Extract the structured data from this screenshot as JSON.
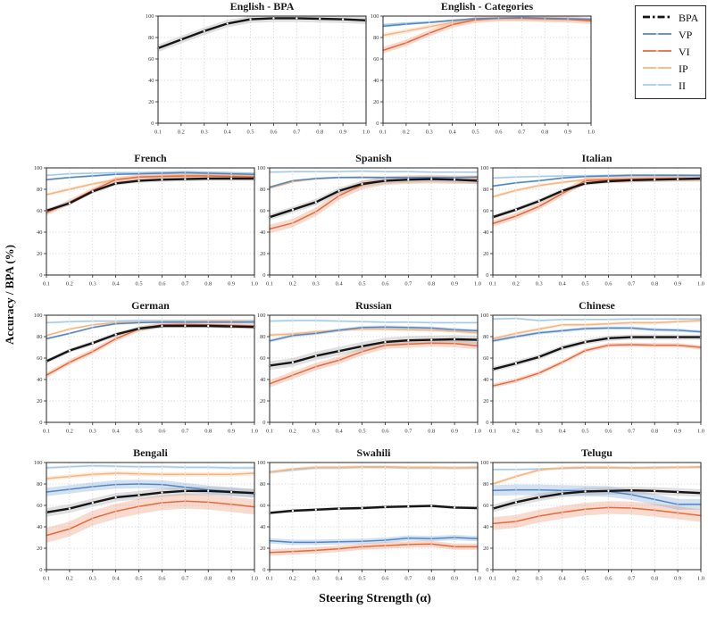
{
  "axes": {
    "xlabel": "Steering Strength (α)",
    "ylabel": "Accuracy / BPA (%)"
  },
  "legend": {
    "entries": [
      {
        "label": "BPA",
        "series": "BPA",
        "style": "dashdot"
      },
      {
        "label": "VP",
        "series": "VP",
        "style": "line"
      },
      {
        "label": "VI",
        "series": "VI",
        "style": "line"
      },
      {
        "label": "IP",
        "series": "IP",
        "style": "line"
      },
      {
        "label": "II",
        "series": "II",
        "style": "line"
      }
    ]
  },
  "palette": {
    "BPA": {
      "line": "#151515",
      "band": "#9e9e9e"
    },
    "VP": {
      "line": "#5287c5",
      "band": "#5287c5"
    },
    "VI": {
      "line": "#e66a3d",
      "band": "#e66a3d"
    },
    "IP": {
      "line": "#f6b47c",
      "band": "#f6b47c"
    },
    "II": {
      "line": "#a6cbe6",
      "band": "#a6cbe6"
    }
  },
  "chart_common": {
    "type": "line",
    "x": [
      0.1,
      0.2,
      0.3,
      0.4,
      0.5,
      0.6,
      0.7,
      0.8,
      0.9,
      1.0
    ],
    "xtick_labels": [
      "0.1",
      "0.2",
      "0.3",
      "0.4",
      "0.5",
      "0.6",
      "0.7",
      "0.8",
      "0.9",
      "1.0"
    ],
    "yticks": [
      0,
      20,
      40,
      60,
      80,
      100
    ],
    "ytick_labels": [
      "0",
      "20",
      "40",
      "60",
      "80",
      "100"
    ],
    "ylim": [
      0,
      100
    ],
    "grid": true
  },
  "chart_data": [
    {
      "title": "English - BPA",
      "series": [
        {
          "name": "BPA",
          "values": [
            70,
            78,
            86,
            93,
            97,
            98,
            98,
            97.5,
            97,
            96
          ],
          "band": 3.5
        }
      ]
    },
    {
      "title": "English - Categories",
      "series": [
        {
          "name": "VP",
          "values": [
            90.5,
            92.5,
            94,
            96,
            97.5,
            98,
            98.5,
            98,
            97.5,
            97
          ],
          "band": 1
        },
        {
          "name": "VI",
          "values": [
            68,
            75,
            84,
            92,
            96.5,
            98,
            98,
            97.5,
            97,
            95.5
          ],
          "band": 3
        },
        {
          "name": "IP",
          "values": [
            82,
            86,
            90,
            94,
            96.5,
            97.5,
            97.5,
            97,
            97,
            96
          ],
          "band": 2
        },
        {
          "name": "II",
          "values": [
            92,
            93.5,
            94.5,
            95.5,
            97,
            98,
            98,
            97.5,
            97.5,
            96.5
          ],
          "band": 1
        }
      ]
    },
    {
      "title": "French",
      "series": [
        {
          "name": "BPA",
          "values": [
            60,
            67,
            78,
            85.5,
            88,
            89,
            89.5,
            90,
            90,
            90
          ],
          "band": 2
        },
        {
          "name": "VP",
          "values": [
            89,
            91,
            92.5,
            94,
            94.5,
            95,
            95.5,
            95,
            94.5,
            94
          ],
          "band": 1
        },
        {
          "name": "VI",
          "values": [
            58,
            68,
            79,
            89,
            91.5,
            92,
            92.5,
            92.5,
            92,
            91.5
          ],
          "band": 2.5
        },
        {
          "name": "IP",
          "values": [
            75,
            80,
            85,
            89,
            91.5,
            92.5,
            93,
            93,
            93,
            92.5
          ],
          "band": 1.5
        },
        {
          "name": "II",
          "values": [
            93,
            94.5,
            95,
            95.5,
            95.5,
            96,
            96.5,
            96,
            95.5,
            95
          ],
          "band": 1
        }
      ]
    },
    {
      "title": "Spanish",
      "series": [
        {
          "name": "BPA",
          "values": [
            54,
            61,
            68,
            78.5,
            85,
            88,
            89,
            89.5,
            89,
            88
          ],
          "band": 3
        },
        {
          "name": "VP",
          "values": [
            82,
            88,
            90,
            91,
            91,
            91,
            91,
            91,
            91,
            91.5
          ],
          "band": 1
        },
        {
          "name": "VI",
          "values": [
            43,
            48.5,
            59,
            74,
            84,
            88,
            89,
            89.5,
            89,
            89
          ],
          "band": 4
        },
        {
          "name": "IP",
          "values": [
            81,
            87,
            90,
            91,
            91.5,
            91,
            91,
            91,
            91,
            91.5
          ],
          "band": 1
        },
        {
          "name": "II",
          "values": [
            96,
            96.5,
            96.5,
            96.5,
            97,
            96.5,
            96.5,
            96,
            96,
            96
          ],
          "band": 1
        }
      ]
    },
    {
      "title": "Italian",
      "series": [
        {
          "name": "BPA",
          "values": [
            54,
            61,
            69,
            78.5,
            85.5,
            87.5,
            88.5,
            89,
            89.5,
            90
          ],
          "band": 2
        },
        {
          "name": "VP",
          "values": [
            83,
            86,
            88,
            90.5,
            92,
            92.5,
            93,
            93,
            93,
            93
          ],
          "band": 1
        },
        {
          "name": "VI",
          "values": [
            48,
            55,
            64,
            76,
            88,
            89,
            89.5,
            90,
            90,
            90
          ],
          "band": 3
        },
        {
          "name": "IP",
          "values": [
            73,
            79,
            83.5,
            86.5,
            89,
            89.5,
            90,
            90.5,
            90.5,
            90
          ],
          "band": 1.5
        },
        {
          "name": "II",
          "values": [
            90.5,
            91.5,
            92,
            92.5,
            92.5,
            93,
            93.5,
            93.5,
            93.5,
            93
          ],
          "band": 1
        }
      ]
    },
    {
      "title": "German",
      "series": [
        {
          "name": "BPA",
          "values": [
            57,
            67,
            74,
            82,
            87.5,
            90,
            90,
            90,
            89.5,
            89
          ],
          "band": 2
        },
        {
          "name": "VP",
          "values": [
            78,
            83,
            88.5,
            92,
            93,
            93.5,
            93.5,
            93.5,
            93.5,
            93.5
          ],
          "band": 1
        },
        {
          "name": "VI",
          "values": [
            44,
            56,
            66,
            78,
            87,
            91,
            91.5,
            91,
            90.5,
            90
          ],
          "band": 2.5
        },
        {
          "name": "IP",
          "values": [
            81,
            87,
            91,
            93,
            93.5,
            94,
            94,
            94.5,
            94.5,
            94
          ],
          "band": 1
        },
        {
          "name": "II",
          "values": [
            93,
            94,
            94.5,
            94.5,
            95,
            95,
            95,
            95,
            95,
            95
          ],
          "band": 1
        }
      ]
    },
    {
      "title": "Russian",
      "series": [
        {
          "name": "BPA",
          "values": [
            53,
            56,
            62,
            66.5,
            71,
            75,
            76.5,
            77,
            77.5,
            77
          ],
          "band": 4
        },
        {
          "name": "VP",
          "values": [
            76,
            81,
            83,
            86,
            88.5,
            89,
            88.5,
            88,
            86.5,
            85.5
          ],
          "band": 1.5
        },
        {
          "name": "VI",
          "values": [
            36,
            44,
            52,
            58,
            66,
            72,
            73,
            74,
            73.5,
            71.5
          ],
          "band": 3.5
        },
        {
          "name": "IP",
          "values": [
            81.5,
            82.5,
            84.5,
            86,
            87,
            87,
            86.5,
            86,
            85,
            83.5
          ],
          "band": 1.5
        },
        {
          "name": "II",
          "values": [
            94.5,
            95,
            95,
            94.5,
            94,
            93.5,
            93.5,
            93,
            93,
            93
          ],
          "band": 1
        }
      ]
    },
    {
      "title": "Chinese",
      "series": [
        {
          "name": "BPA",
          "values": [
            49.5,
            55,
            61,
            69.5,
            75,
            78.5,
            79.5,
            79.5,
            79.5,
            79.5
          ],
          "band": 2.5
        },
        {
          "name": "VP",
          "values": [
            76,
            80,
            83.5,
            85.5,
            87.5,
            88,
            88,
            86.5,
            86,
            84.5
          ],
          "band": 1.5
        },
        {
          "name": "VI",
          "values": [
            34,
            39,
            46,
            56,
            67,
            72,
            72.5,
            72,
            72,
            70
          ],
          "band": 2
        },
        {
          "name": "IP",
          "values": [
            78,
            83,
            87,
            91,
            91,
            92,
            93,
            93,
            94,
            95
          ],
          "band": 1.5
        },
        {
          "name": "II",
          "values": [
            96.5,
            97,
            95,
            96,
            96,
            96,
            96.5,
            96.5,
            96.5,
            96.5
          ],
          "band": 1
        }
      ]
    },
    {
      "title": "Bengali",
      "series": [
        {
          "name": "BPA",
          "values": [
            53.5,
            57,
            62.5,
            67.5,
            69.5,
            72,
            73.5,
            73.5,
            72.5,
            71.5
          ],
          "band": 4
        },
        {
          "name": "VP",
          "values": [
            72.5,
            75,
            77.5,
            79.5,
            80,
            79.5,
            77,
            74.5,
            73,
            71
          ],
          "band": 4
        },
        {
          "name": "VI",
          "values": [
            32,
            38,
            48,
            54.5,
            59,
            62.5,
            64,
            63,
            61,
            58.5
          ],
          "band": 7
        },
        {
          "name": "IP",
          "values": [
            85,
            87,
            89,
            90,
            89.5,
            89,
            89,
            89,
            89,
            90
          ],
          "band": 2
        },
        {
          "name": "II",
          "values": [
            95,
            96,
            97,
            96.5,
            96,
            96,
            95.5,
            95.5,
            95,
            95
          ],
          "band": 1.5
        }
      ]
    },
    {
      "title": "Swahili",
      "series": [
        {
          "name": "BPA",
          "values": [
            53,
            55,
            56,
            57,
            57.5,
            58.5,
            59,
            59.5,
            58,
            57.5
          ],
          "band": 1.5
        },
        {
          "name": "VP",
          "values": [
            27,
            25.5,
            25.5,
            26,
            26.5,
            27.5,
            29.5,
            29,
            30,
            29
          ],
          "band": 2.5
        },
        {
          "name": "VI",
          "values": [
            16,
            17,
            18,
            19.5,
            21.5,
            22.5,
            23.5,
            24,
            21.5,
            21.5
          ],
          "band": 3
        },
        {
          "name": "IP",
          "values": [
            91,
            94,
            95.5,
            95.5,
            96,
            96,
            95.5,
            95.5,
            95,
            95.5
          ],
          "band": 1.5
        },
        {
          "name": "II",
          "values": [
            91,
            93,
            95,
            95,
            95.5,
            95.5,
            95,
            95,
            95,
            95
          ],
          "band": 1.5
        }
      ]
    },
    {
      "title": "Telugu",
      "series": [
        {
          "name": "BPA",
          "values": [
            57,
            63,
            67.5,
            71,
            73,
            73.5,
            74,
            73.5,
            72.5,
            71.5
          ],
          "band": 3.5
        },
        {
          "name": "VP",
          "values": [
            74,
            74.5,
            74.5,
            74,
            73.5,
            73,
            70,
            65.5,
            61,
            61
          ],
          "band": 5
        },
        {
          "name": "VI",
          "values": [
            43,
            45,
            50,
            53.5,
            56.5,
            58,
            57.5,
            55.5,
            53,
            50.5
          ],
          "band": 6
        },
        {
          "name": "IP",
          "values": [
            80,
            87,
            93,
            95,
            95.5,
            95.5,
            95,
            95,
            95.5,
            96
          ],
          "band": 1.5
        },
        {
          "name": "II",
          "values": [
            93.5,
            93.5,
            94,
            94.5,
            95,
            95,
            95,
            95.5,
            95.5,
            95.5
          ],
          "band": 1
        }
      ]
    }
  ]
}
